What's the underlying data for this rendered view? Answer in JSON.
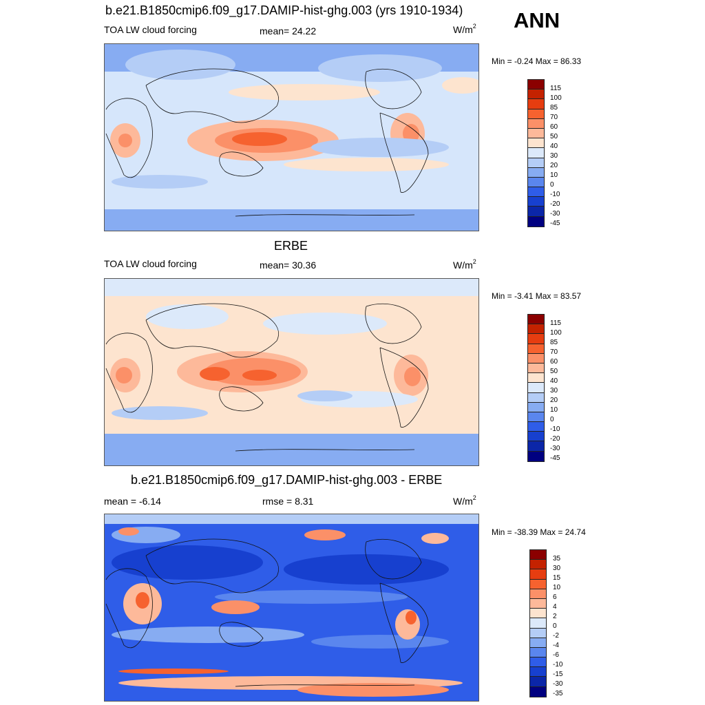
{
  "season": "ANN",
  "panels": [
    {
      "title": "b.e21.B1850cmip6.f09_g17.DAMIP-hist-ghg.003 (yrs 1910-1934)",
      "left_label": "TOA LW cloud forcing",
      "center_label": "mean=  24.22",
      "units": "W/m",
      "units_sup": "2",
      "minmax": "Min =  -0.24 Max =  86.33",
      "legend_labels": [
        "115",
        "100",
        "85",
        "70",
        "60",
        "50",
        "40",
        "30",
        "20",
        "10",
        "0",
        "-10",
        "-20",
        "-30",
        "-45"
      ],
      "legend_colors": [
        "#8b0000",
        "#c42200",
        "#e63d10",
        "#f6622f",
        "#fb9068",
        "#fdb99a",
        "#fde4cf",
        "#dce9fa",
        "#b4cdf6",
        "#87acf2",
        "#5a86ee",
        "#2f5de8",
        "#1740cf",
        "#0b26a8",
        "#000080"
      ],
      "background": "#d6e6fb"
    },
    {
      "title": "ERBE",
      "left_label": "TOA LW cloud forcing",
      "center_label": "mean=  30.36",
      "units": "W/m",
      "units_sup": "2",
      "minmax": "Min =  -3.41 Max =  83.57",
      "legend_labels": [
        "115",
        "100",
        "85",
        "70",
        "60",
        "50",
        "40",
        "30",
        "20",
        "10",
        "0",
        "-10",
        "-20",
        "-30",
        "-45"
      ],
      "legend_colors": [
        "#8b0000",
        "#c42200",
        "#e63d10",
        "#f6622f",
        "#fb9068",
        "#fdb99a",
        "#fde4cf",
        "#dce9fa",
        "#b4cdf6",
        "#87acf2",
        "#5a86ee",
        "#2f5de8",
        "#1740cf",
        "#0b26a8",
        "#000080"
      ],
      "background": "#fde4cf"
    },
    {
      "title": "b.e21.B1850cmip6.f09_g17.DAMIP-hist-ghg.003 - ERBE",
      "left_label": "mean =  -6.14",
      "center_label": "rmse =   8.31",
      "units": "W/m",
      "units_sup": "2",
      "minmax": "Min = -38.39 Max =  24.74",
      "legend_labels": [
        "35",
        "30",
        "15",
        "10",
        "6",
        "4",
        "2",
        "0",
        "-2",
        "-4",
        "-6",
        "-10",
        "-15",
        "-30",
        "-35"
      ],
      "legend_colors": [
        "#8b0000",
        "#c42200",
        "#e63d10",
        "#f6622f",
        "#fb9068",
        "#fdb99a",
        "#fde4cf",
        "#dce9fa",
        "#b4cdf6",
        "#87acf2",
        "#5a86ee",
        "#2f5de8",
        "#1740cf",
        "#0b26a8",
        "#000080"
      ],
      "background": "#2f5de8"
    }
  ]
}
